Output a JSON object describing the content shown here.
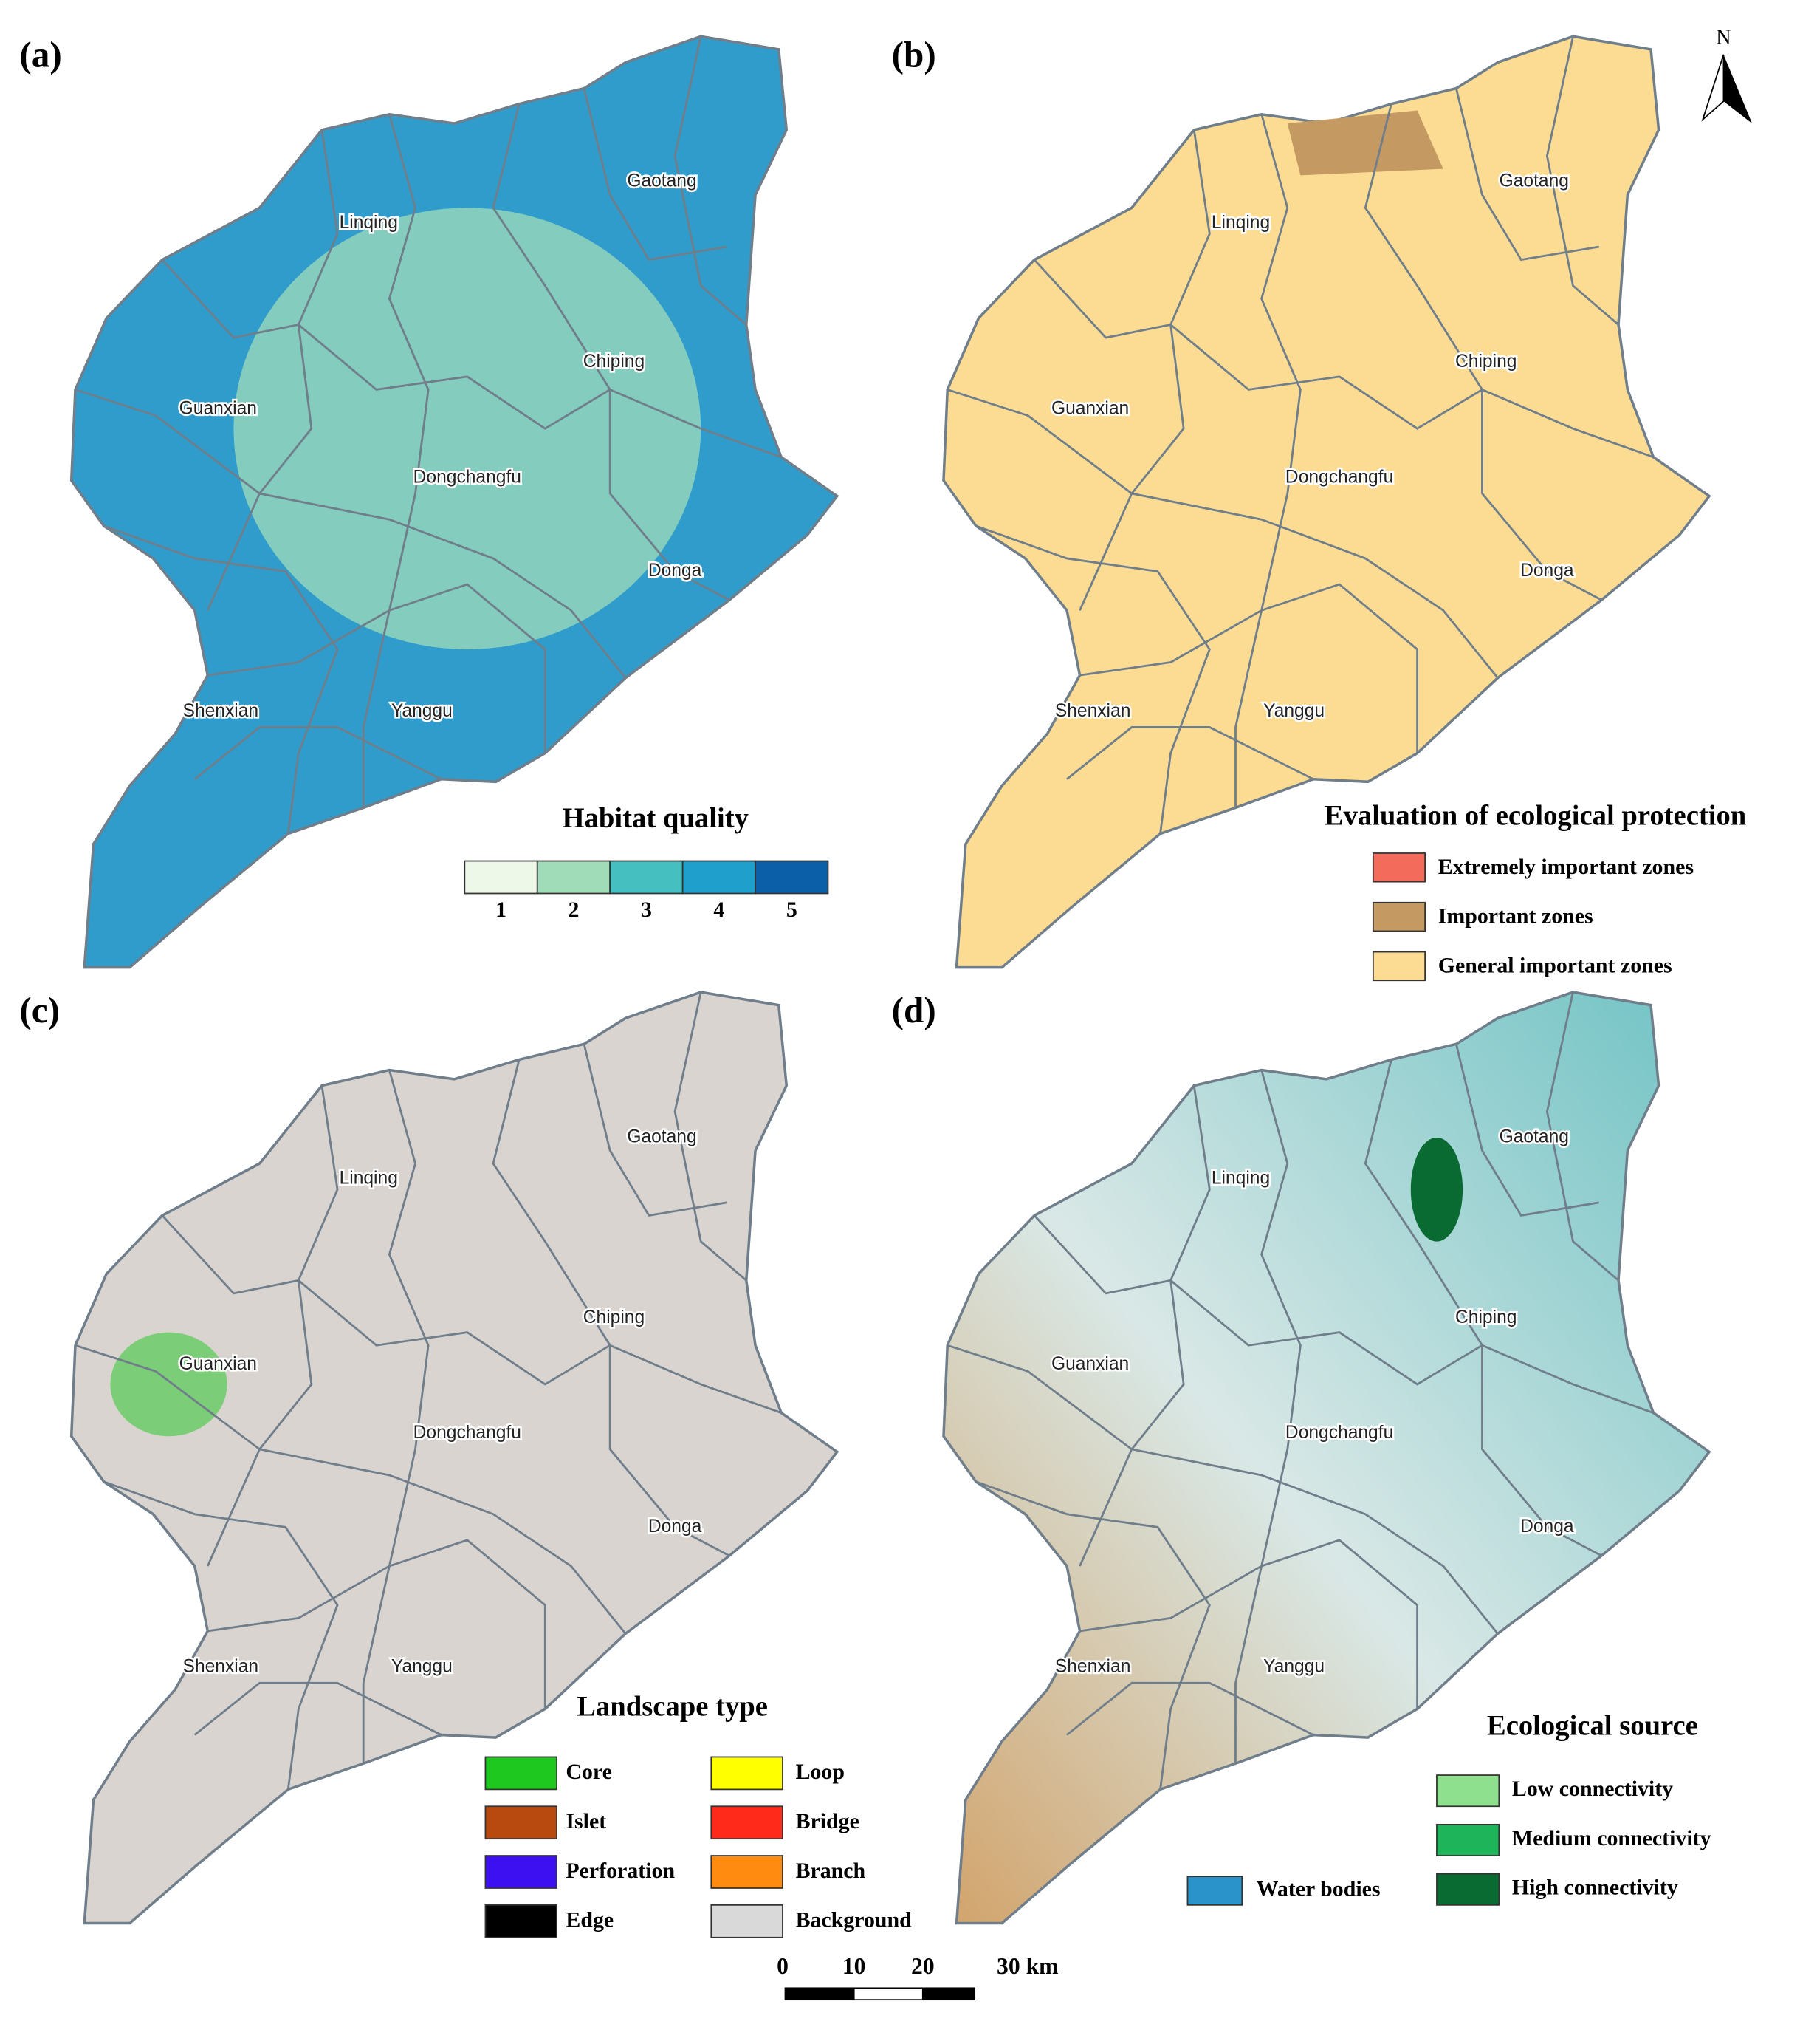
{
  "panels": [
    {
      "label": "(a)",
      "legend": {
        "title": "Habitat quality",
        "items": [
          {
            "label": "1",
            "color": "#edf8e9"
          },
          {
            "label": "2",
            "color": "#a1dcb8"
          },
          {
            "label": "3",
            "color": "#45bfc0"
          },
          {
            "label": "4",
            "color": "#1fa0cc"
          },
          {
            "label": "5",
            "color": "#0b5ea8"
          }
        ]
      }
    },
    {
      "label": "(b)",
      "legend": {
        "title": "Evaluation of ecological protection",
        "items": [
          {
            "label": "Extremely important zones",
            "color": "#f26b5b"
          },
          {
            "label": "Important zones",
            "color": "#c49a62"
          },
          {
            "label": "General important zones",
            "color": "#fcdc92"
          }
        ]
      }
    },
    {
      "label": "(c)",
      "legend": {
        "title": "Landscape type",
        "items": [
          {
            "label": "Core",
            "color": "#1ec81e"
          },
          {
            "label": "Islet",
            "color": "#b84a10"
          },
          {
            "label": "Perforation",
            "color": "#3c10f0"
          },
          {
            "label": "Edge",
            "color": "#000000"
          },
          {
            "label": "Loop",
            "color": "#ffff00"
          },
          {
            "label": "Bridge",
            "color": "#ff2a1a"
          },
          {
            "label": "Branch",
            "color": "#ff8c10"
          },
          {
            "label": "Background",
            "color": "#d9d9d9"
          }
        ]
      }
    },
    {
      "label": "(d)",
      "legend": {
        "title": "Ecological source",
        "items": [
          {
            "label": "Low connectivity",
            "color": "#8ee08e"
          },
          {
            "label": "Medium connectivity",
            "color": "#1eb45a"
          },
          {
            "label": "High connectivity",
            "color": "#0a6b32"
          },
          {
            "label": "Water bodies",
            "color": "#2a93c9"
          }
        ]
      }
    }
  ],
  "places": [
    {
      "name": "Linqing"
    },
    {
      "name": "Gaotang"
    },
    {
      "name": "Chiping"
    },
    {
      "name": "Guanxian"
    },
    {
      "name": "Dongchangfu"
    },
    {
      "name": "Donga"
    },
    {
      "name": "Shenxian"
    },
    {
      "name": "Yanggu"
    }
  ],
  "north": "N",
  "scale_bar": [
    "0",
    "10",
    "20",
    "30 km"
  ]
}
